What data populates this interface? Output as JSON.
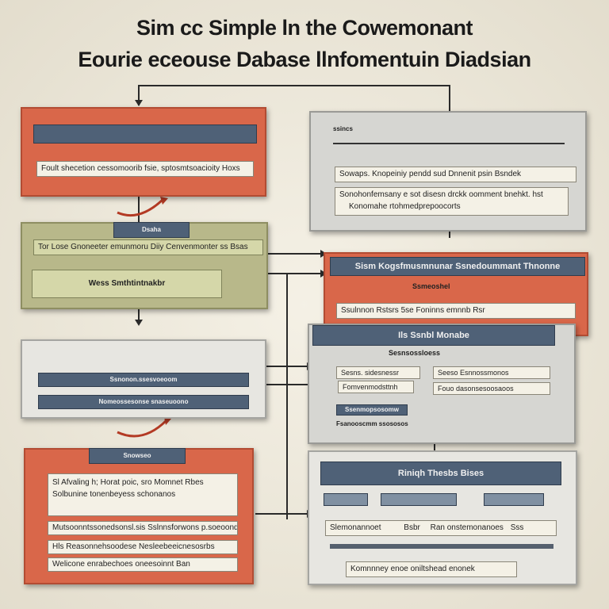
{
  "title": {
    "line1": "Sim cc Simple ln the Cowemonant",
    "line2": "Eourie eceouse Dabase llnfomentuin Diadsian"
  },
  "box_a": {
    "text": "Foult shecetion cessomoorib fsie, sptosmtsoacioity Hoxs"
  },
  "box_b": {
    "header": "ssincs",
    "line1": "Sowaps. Knopeiniy pendd sud Dnnenit psin Bsndek",
    "line2": "Sonohonfemsany e sot disesn drckk oomment bnehkt. hst",
    "line3": "Konomahe rtohmedprepoocorts"
  },
  "box_c": {
    "header": "Dsaha",
    "line1": "Tor Lose Gnoneeter emunmoru Diiy Cenvenmonter ss Bsas",
    "button": "Wess Smthtintnakbr"
  },
  "box_d": {
    "header": "Sism Kogsfmusmnunar Ssnedoummant Thnonne",
    "sub": "Ssmeoshel",
    "line1": "Ssulnnon Rstsrs 5se Foninns emnnb Rsr"
  },
  "box_e": {
    "row1": "Ssnonon.ssesvoeoom",
    "row2": "Nomeossesonse snaseuoono"
  },
  "box_f": {
    "header": "Ils Ssnbl Monabe",
    "sub": "Sesnsossloess",
    "tag1": "Sesns. sidesnessr",
    "tag2": "Fomvenmodsttnh",
    "tag3": "Seeso Esnnossmonos",
    "tag4": "Fouo dasonsesoosaoos",
    "line1": "Ssenmopsosomw",
    "line2": "Fsanooscmm ssososos"
  },
  "box_g": {
    "header": "Snowseo",
    "line1": "Sl Afvaling h; Horat poic, sro Momnet Rbes",
    "line2": "Solbunine tonenbeyess schonanos",
    "line3": "Mutsoonntssonedsonsl.sis Sslnnsforwons p.soeoondl, ?",
    "line4": "Hls Reasonnehsoodese Nesleebeeicnesosrbs",
    "line5": "Welicone enrabechoes oneesoinnt Ban"
  },
  "box_h": {
    "header": "Riniqh Thesbs Bises",
    "line1": "Slemonannoet",
    "line2": "Bsbr",
    "line3": "Ran onstemonanoes",
    "line4": "Sss",
    "line5": "Komnnney enoe oniltshead enonek"
  }
}
